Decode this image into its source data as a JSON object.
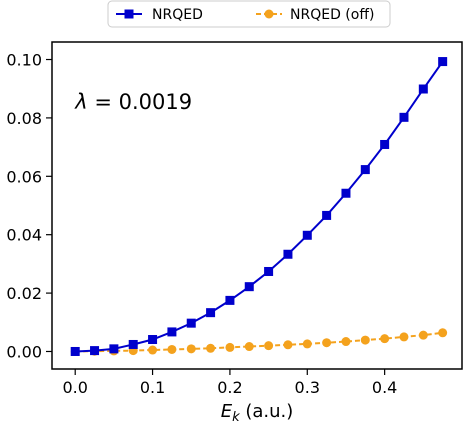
{
  "chart_data": {
    "type": "line",
    "xlabel": "E_k (a.u.)",
    "xlabel_main": "E",
    "xlabel_sub": "k",
    "xlabel_unit": " (a.u.)",
    "ylabel": "",
    "xlim": [
      -0.03,
      0.5
    ],
    "ylim": [
      -0.006,
      0.106
    ],
    "x_ticks": [
      0.0,
      0.1,
      0.2,
      0.3,
      0.4
    ],
    "x_tick_labels": [
      "0.0",
      "0.1",
      "0.2",
      "0.3",
      "0.4"
    ],
    "y_ticks": [
      0.0,
      0.02,
      0.04,
      0.06,
      0.08,
      0.1
    ],
    "y_tick_labels": [
      "0.00",
      "0.02",
      "0.04",
      "0.06",
      "0.08",
      "0.10"
    ],
    "grid": false,
    "legend_position": "top-center",
    "annotation": {
      "symbol": "λ",
      "text": " = 0.0019",
      "x": 0.0,
      "y": 0.083
    },
    "x": [
      0.0,
      0.025,
      0.05,
      0.075,
      0.1,
      0.125,
      0.15,
      0.175,
      0.2,
      0.225,
      0.25,
      0.275,
      0.3,
      0.325,
      0.35,
      0.375,
      0.4,
      0.425,
      0.45,
      0.475
    ],
    "series": [
      {
        "name": "NRQED",
        "color": "#0000cc",
        "marker": "square",
        "linestyle": "solid",
        "values": [
          0.0,
          0.0003,
          0.0009,
          0.0024,
          0.0041,
          0.0067,
          0.0097,
          0.0133,
          0.0175,
          0.0222,
          0.0274,
          0.0333,
          0.0398,
          0.0466,
          0.0542,
          0.0623,
          0.0709,
          0.0802,
          0.0899,
          0.0993
        ]
      },
      {
        "name": "NRQED (off)",
        "color": "#f4a21d",
        "marker": "circle",
        "linestyle": "dashed",
        "values": [
          0.0,
          0.0001,
          0.0002,
          0.0003,
          0.0005,
          0.0007,
          0.0009,
          0.0011,
          0.0014,
          0.0017,
          0.002,
          0.0023,
          0.0026,
          0.003,
          0.0034,
          0.0039,
          0.0044,
          0.005,
          0.0056,
          0.0064
        ]
      }
    ]
  }
}
